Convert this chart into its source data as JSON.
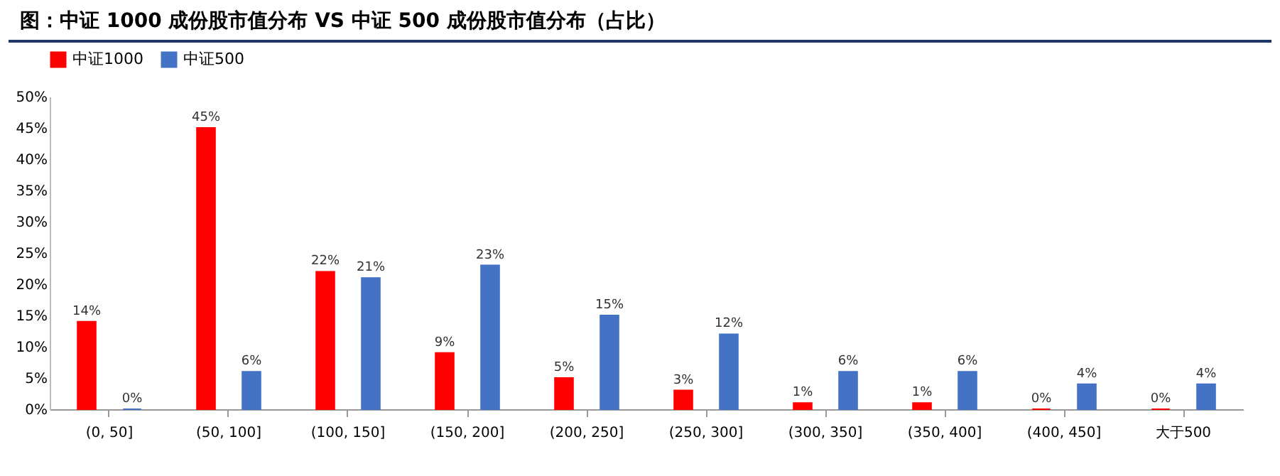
{
  "chart_data": {
    "type": "bar",
    "title": "图：中证 1000 成份股市值分布 VS 中证 500 成份股市值分布（占比）",
    "categories": [
      "(0, 50]",
      "(50, 100]",
      "(100, 150]",
      "(150, 200]",
      "(200, 250]",
      "(250, 300]",
      "(300, 350]",
      "(350, 400]",
      "(400, 450]",
      "大于500"
    ],
    "series": [
      {
        "name": "中证1000",
        "color": "#ff0000",
        "values": [
          14,
          45,
          22,
          9,
          5,
          3,
          1,
          1,
          0,
          0
        ],
        "value_labels": [
          "14%",
          "45%",
          "22%",
          "9%",
          "5%",
          "3%",
          "1%",
          "1%",
          "0%",
          "0%"
        ]
      },
      {
        "name": "中证500",
        "color": "#4472c4",
        "values": [
          0,
          6,
          21,
          23,
          15,
          12,
          6,
          6,
          4,
          4
        ],
        "value_labels": [
          "0%",
          "6%",
          "21%",
          "23%",
          "15%",
          "12%",
          "6%",
          "6%",
          "4%",
          "4%"
        ]
      }
    ],
    "ylim": [
      0,
      50
    ],
    "yticks": [
      {
        "value": 0,
        "label": "0%"
      },
      {
        "value": 5,
        "label": "5%"
      },
      {
        "value": 10,
        "label": "10%"
      },
      {
        "value": 15,
        "label": "15%"
      },
      {
        "value": 20,
        "label": "20%"
      },
      {
        "value": 25,
        "label": "25%"
      },
      {
        "value": 30,
        "label": "30%"
      },
      {
        "value": 35,
        "label": "35%"
      },
      {
        "value": 40,
        "label": "40%"
      },
      {
        "value": 45,
        "label": "45%"
      },
      {
        "value": 50,
        "label": "50%"
      }
    ],
    "grid": false,
    "legend": "top"
  }
}
